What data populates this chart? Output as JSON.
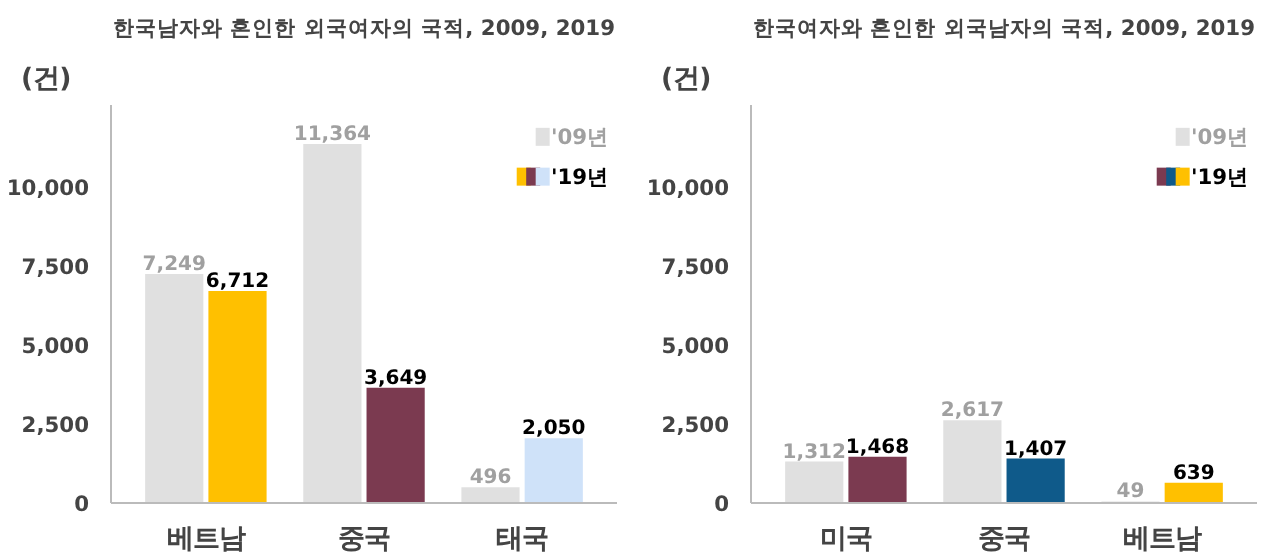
{
  "chart_data": [
    {
      "type": "bar",
      "title": "한국남자와 혼인한 외국여자의 국적, 2009, 2019",
      "ylabel": "(건)",
      "categories": [
        "베트남",
        "중국",
        "태국"
      ],
      "ylim": [
        0,
        12600
      ],
      "series": [
        {
          "name": "'09년",
          "color": "#e0e0e0",
          "values": [
            7249,
            11364,
            496
          ],
          "value_labels": [
            "7,249",
            "11,364",
            "496"
          ]
        },
        {
          "name": "'19년",
          "colors": [
            "#ffc000",
            "#7b3a50",
            "#cfe2f9"
          ],
          "values": [
            6712,
            3649,
            2050
          ],
          "value_labels": [
            "6,712",
            "3,649",
            "2,050"
          ]
        }
      ],
      "yticks": [
        0,
        {
          "value": 2500,
          "label": "2,500"
        },
        {
          "value": 5000,
          "label": "5,000"
        },
        {
          "value": 7500,
          "label": "7,500"
        },
        {
          "value": 10000,
          "label": "10,000"
        }
      ],
      "legend": "top right",
      "grid": false
    },
    {
      "type": "bar",
      "title": "한국여자와 혼인한 외국남자의 국적, 2009, 2019",
      "ylabel": "(건)",
      "categories": [
        "미국",
        "중국",
        "베트남"
      ],
      "series": [
        {
          "name": "'09년",
          "color": "#e0e0e0",
          "values": [
            1312,
            2617,
            49
          ],
          "value_labels": [
            "1,312",
            "2,617",
            "49"
          ]
        },
        {
          "name": "'19년",
          "colors": [
            "#7b3a50",
            "#0f5a8a",
            "#ffc000"
          ],
          "values": [
            1468,
            1407,
            639
          ],
          "value_labels": [
            "1,468",
            "1,407",
            "639"
          ]
        }
      ],
      "ylim": [
        0,
        12600
      ],
      "yticks": [
        0,
        {
          "value": 2500,
          "label": "2,500"
        },
        {
          "value": 5000,
          "label": "5,000"
        },
        {
          "value": 7500,
          "label": "7,500"
        },
        {
          "value": 10000,
          "label": "10,000"
        }
      ],
      "legend": "top right",
      "grid": false
    }
  ]
}
